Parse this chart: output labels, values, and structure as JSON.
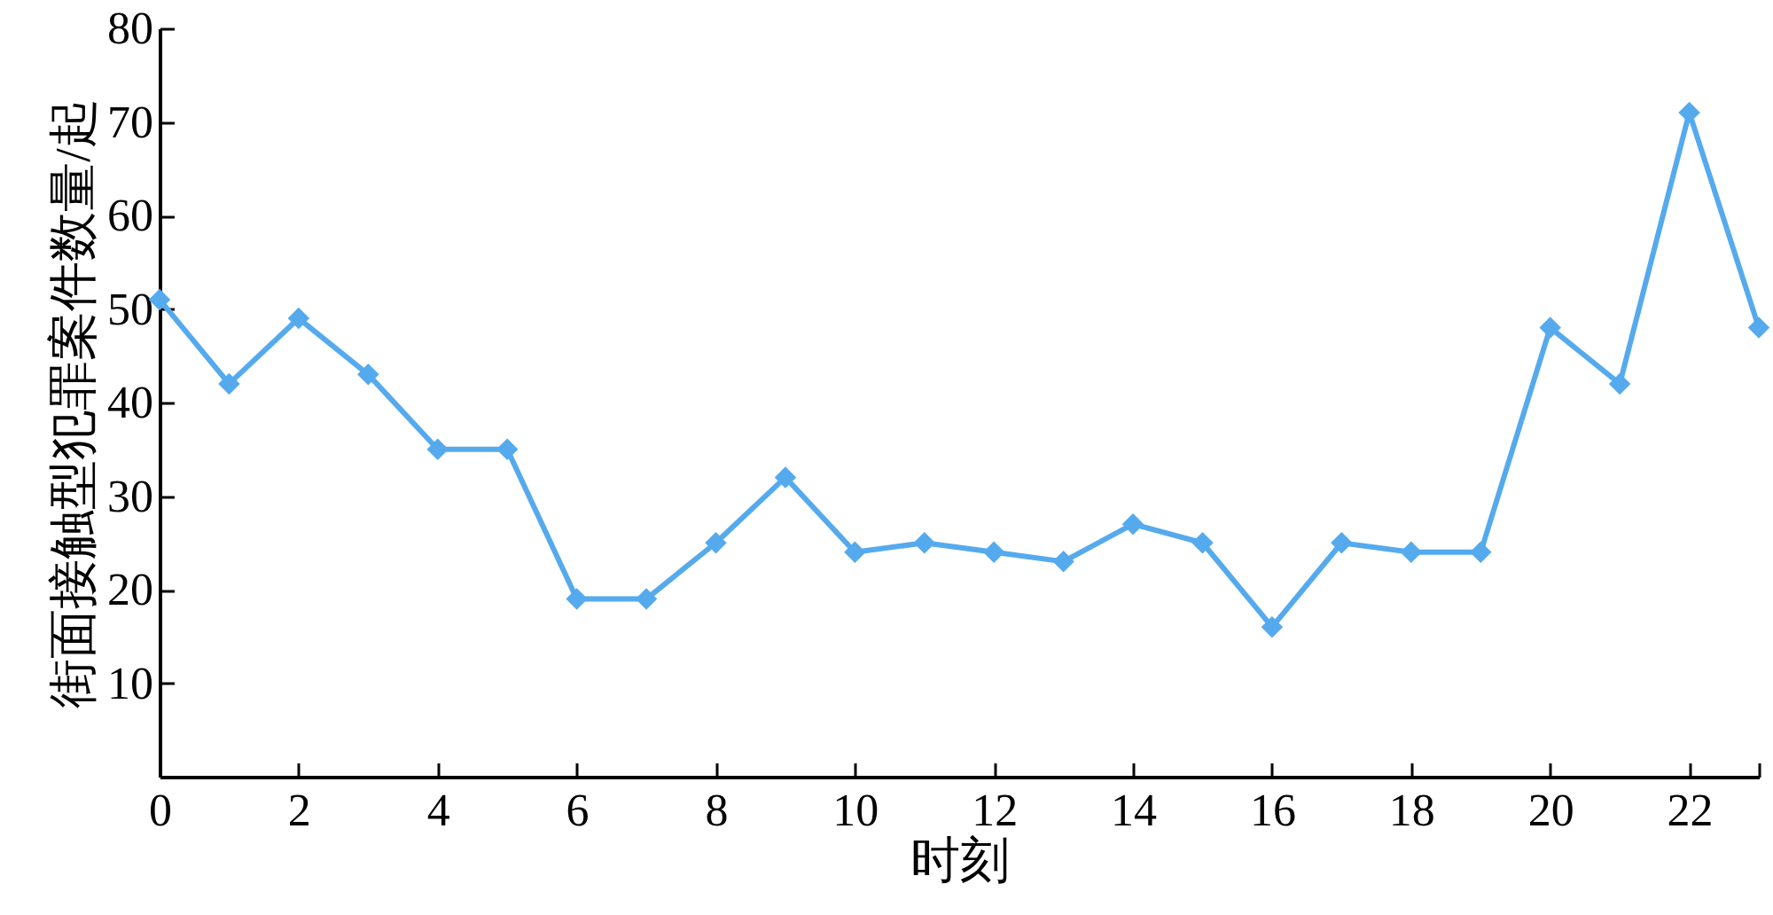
{
  "chart_data": {
    "type": "line",
    "xlabel": "时刻",
    "ylabel": "街面接触型犯罪案件数量/起",
    "x": [
      0,
      1,
      2,
      3,
      4,
      5,
      6,
      7,
      8,
      9,
      10,
      11,
      12,
      13,
      14,
      15,
      16,
      17,
      18,
      19,
      20,
      21,
      22,
      23
    ],
    "series": [
      {
        "color": "#55aaee",
        "values": [
          51,
          42,
          49,
          43,
          35,
          35,
          19,
          19,
          25,
          32,
          24,
          25,
          24,
          23,
          27,
          25,
          16,
          25,
          24,
          24,
          48,
          42,
          71,
          48
        ]
      }
    ],
    "xlim": [
      0,
      23
    ],
    "xticks": [
      0,
      2,
      4,
      6,
      8,
      10,
      12,
      14,
      16,
      18,
      20,
      22,
      {
        "value": 23,
        "label": null
      }
    ],
    "ylim": [
      0,
      80
    ],
    "yticks": [
      10,
      20,
      30,
      40,
      50,
      60,
      70,
      80
    ],
    "grid": false,
    "marker": "diamond",
    "line_style": "solid"
  }
}
